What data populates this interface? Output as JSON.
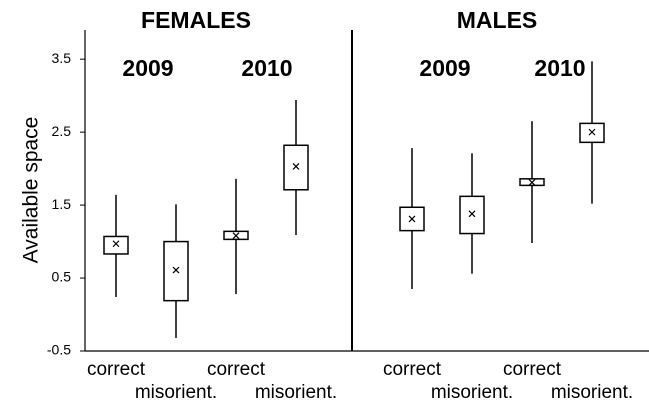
{
  "chart_data": {
    "type": "box",
    "ylabel": "Available space",
    "groups": [
      "FEMALES",
      "MALES"
    ],
    "years": [
      "2009",
      "2010",
      "2009",
      "2010"
    ],
    "categories": [
      "correct",
      "misorient.",
      "correct",
      "misorient.",
      "correct",
      "misorient.",
      "correct",
      "misorient."
    ],
    "min": [
      0.24,
      -0.32,
      0.28,
      1.09,
      0.35,
      0.56,
      0.98,
      1.52
    ],
    "q1": [
      0.83,
      0.19,
      1.03,
      1.71,
      1.15,
      1.11,
      1.77,
      2.36
    ],
    "q3": [
      1.07,
      1.0,
      1.14,
      2.32,
      1.47,
      1.62,
      1.86,
      2.62
    ],
    "max": [
      1.64,
      1.51,
      1.86,
      2.94,
      2.28,
      2.21,
      2.65,
      3.47
    ],
    "mean": [
      0.97,
      0.61,
      1.08,
      2.03,
      1.31,
      1.38,
      1.81,
      2.5
    ],
    "color": "#000000",
    "ylim": [
      -0.5,
      3.9
    ],
    "yticks": [
      -0.5,
      0.5,
      1.5,
      2.5,
      3.5
    ]
  }
}
